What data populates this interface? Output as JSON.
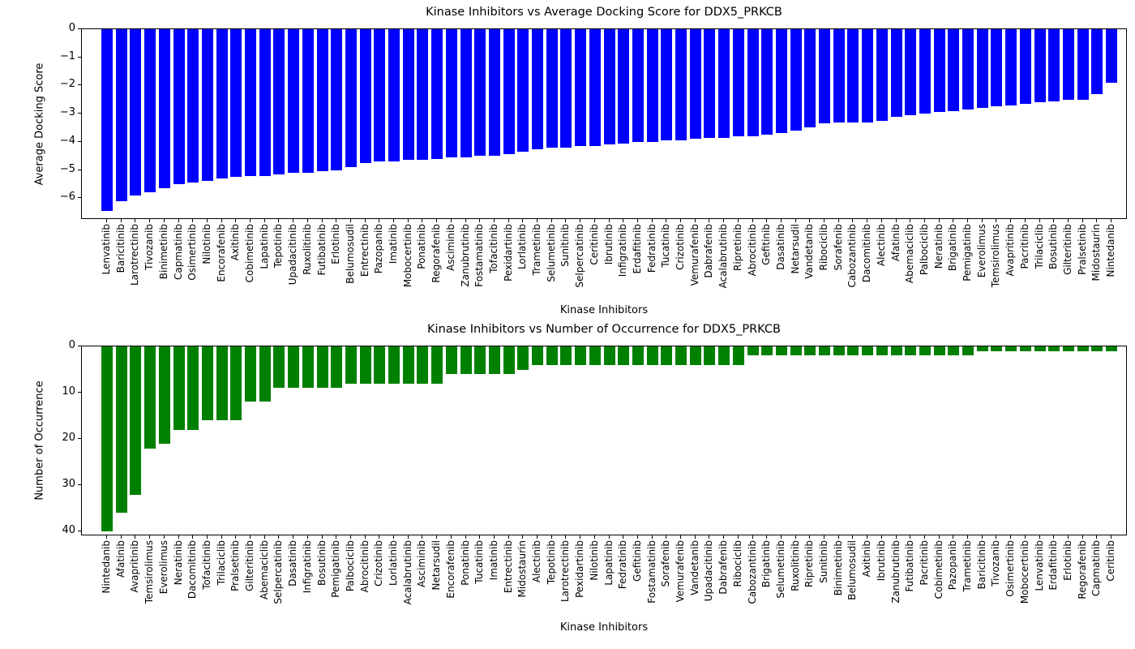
{
  "figure_background": "#ffffff",
  "chart_data": [
    {
      "type": "bar",
      "title": "Kinase Inhibitors vs Average Docking Score for DDX5_PRKCB",
      "xlabel": "Kinase Inhibitors",
      "ylabel": "Average Docking Score",
      "bar_color": "#0000ff",
      "grid": false,
      "legend": null,
      "ylim": [
        0,
        -6.77
      ],
      "yticks": [
        0,
        -1,
        -2,
        -3,
        -4,
        -5,
        -6
      ],
      "ytick_labels": [
        "0",
        "−1",
        "−2",
        "−3",
        "−4",
        "−5",
        "−6"
      ],
      "categories": [
        "Lenvatinib",
        "Baricitinib",
        "Larotrectinib",
        "Tivozanib",
        "Binimetinib",
        "Capmatinib",
        "Osimertinib",
        "Nilotinib",
        "Encorafenib",
        "Axitinib",
        "Cobimetinib",
        "Lapatinib",
        "Tepotinib",
        "Upadacitinib",
        "Ruxolitinib",
        "Futibatinib",
        "Erlotinib",
        "Belumosudil",
        "Entrectinib",
        "Pazopanib",
        "Imatinib",
        "Mobocertinib",
        "Ponatinib",
        "Regorafenib",
        "Asciminib",
        "Zanubrutinib",
        "Fostamatinib",
        "Tofacitinib",
        "Pexidartinib",
        "Lorlatinib",
        "Trametinib",
        "Selumetinib",
        "Sunitinib",
        "Selpercatinib",
        "Ceritinib",
        "Ibrutinib",
        "Infigratinib",
        "Erdafitinib",
        "Fedratinib",
        "Tucatinib",
        "Crizotinib",
        "Vemurafenib",
        "Dabrafenib",
        "Acalabrutinib",
        "Ripretinib",
        "Abrocitinib",
        "Gefitinib",
        "Dasatinib",
        "Netarsudil",
        "Vandetanib",
        "Ribociclib",
        "Sorafenib",
        "Cabozantinib",
        "Dacomitinib",
        "Alectinib",
        "Afatinib",
        "Abemaciclib",
        "Palbociclib",
        "Neratinib",
        "Brigatinib",
        "Pemigatinib",
        "Everolimus",
        "Temsirolimus",
        "Avapritinib",
        "Pacritinib",
        "Trilaciclib",
        "Bosutinib",
        "Gilteritinib",
        "Pralsetinib",
        "Midostaurin",
        "Nintedanib"
      ],
      "values": [
        -6.45,
        -6.1,
        -5.9,
        -5.8,
        -5.65,
        -5.5,
        -5.45,
        -5.4,
        -5.3,
        -5.25,
        -5.2,
        -5.2,
        -5.15,
        -5.1,
        -5.1,
        -5.05,
        -5.0,
        -4.9,
        -4.75,
        -4.7,
        -4.7,
        -4.65,
        -4.65,
        -4.6,
        -4.55,
        -4.55,
        -4.5,
        -4.5,
        -4.45,
        -4.35,
        -4.25,
        -4.2,
        -4.2,
        -4.15,
        -4.15,
        -4.1,
        -4.05,
        -4.0,
        -4.0,
        -3.95,
        -3.95,
        -3.9,
        -3.85,
        -3.85,
        -3.8,
        -3.8,
        -3.75,
        -3.7,
        -3.6,
        -3.5,
        -3.35,
        -3.3,
        -3.3,
        -3.3,
        -3.25,
        -3.1,
        -3.05,
        -3.0,
        -2.95,
        -2.9,
        -2.85,
        -2.8,
        -2.75,
        -2.7,
        -2.65,
        -2.6,
        -2.55,
        -2.5,
        -2.5,
        -2.3,
        -1.9
      ]
    },
    {
      "type": "bar",
      "title": "Kinase Inhibitors vs Number of Occurrence for DDX5_PRKCB",
      "xlabel": "Kinase Inhibitors",
      "ylabel": "Number of Occurrence",
      "bar_color": "#008000",
      "grid": false,
      "legend": null,
      "ylim": [
        0,
        41
      ],
      "y_axis_inverted": true,
      "yticks": [
        0,
        10,
        20,
        30,
        40
      ],
      "ytick_labels": [
        "0",
        "10",
        "20",
        "30",
        "40"
      ],
      "categories": [
        "Nintedanib",
        "Afatinib",
        "Avapritinib",
        "Temsirolimus",
        "Everolimus",
        "Neratinib",
        "Dacomitinib",
        "Tofacitinib",
        "Trilaciclib",
        "Pralsetinib",
        "Gilteritinib",
        "Abemaciclib",
        "Selpercatinib",
        "Dasatinib",
        "Infigratinib",
        "Bosutinib",
        "Pemigatinib",
        "Palbociclib",
        "Abrocitinib",
        "Crizotinib",
        "Lorlatinib",
        "Acalabrutinib",
        "Asciminib",
        "Netarsudil",
        "Encorafenib",
        "Ponatinib",
        "Tucatinib",
        "Imatinib",
        "Entrectinib",
        "Midostaurin",
        "Alectinib",
        "Tepotinib",
        "Larotrectinib",
        "Pexidartinib",
        "Nilotinib",
        "Lapatinib",
        "Fedratinib",
        "Gefitinib",
        "Fostamatinib",
        "Sorafenib",
        "Vemurafenib",
        "Vandetanib",
        "Upadacitinib",
        "Dabrafenib",
        "Ribociclib",
        "Cabozantinib",
        "Brigatinib",
        "Selumetinib",
        "Ruxolitinib",
        "Ripretinib",
        "Sunitinib",
        "Binimetinib",
        "Belumosudil",
        "Axitinib",
        "Ibrutinib",
        "Zanubrutinib",
        "Futibatinib",
        "Pacritinib",
        "Cobimetinib",
        "Pazopanib",
        "Trametinib",
        "Baricitinib",
        "Tivozanib",
        "Osimertinib",
        "Mobocertinib",
        "Lenvatinib",
        "Erdafitinib",
        "Erlotinib",
        "Regorafenib",
        "Capmatinib",
        "Ceritinib"
      ],
      "values": [
        40,
        36,
        32,
        22,
        21,
        18,
        18,
        16,
        16,
        16,
        12,
        12,
        9,
        9,
        9,
        9,
        9,
        8,
        8,
        8,
        8,
        8,
        8,
        8,
        6,
        6,
        6,
        6,
        6,
        5,
        4,
        4,
        4,
        4,
        4,
        4,
        4,
        4,
        4,
        4,
        4,
        4,
        4,
        4,
        4,
        2,
        2,
        2,
        2,
        2,
        2,
        2,
        2,
        2,
        2,
        2,
        2,
        2,
        2,
        2,
        2,
        1,
        1,
        1,
        1,
        1,
        1,
        1,
        1,
        1,
        1
      ]
    }
  ]
}
